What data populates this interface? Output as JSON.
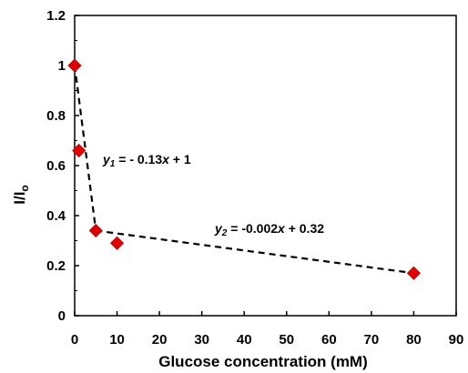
{
  "chart_data": {
    "type": "scatter",
    "xlabel": "Glucose concentration (mM)",
    "ylabel": "I/I",
    "ylabel_subscript": "o",
    "xlim": [
      0,
      90
    ],
    "ylim": [
      0,
      1.2
    ],
    "xticks": [
      0,
      10,
      20,
      30,
      40,
      50,
      60,
      70,
      80,
      90
    ],
    "yticks": [
      "0",
      "0.2",
      "0.4",
      "0.6",
      "0.8",
      "1",
      "1.2"
    ],
    "grid": false,
    "marker": "diamond",
    "marker_color": "#e30000",
    "points": [
      {
        "x": 0,
        "y": 1.0
      },
      {
        "x": 1,
        "y": 0.66
      },
      {
        "x": 5,
        "y": 0.34
      },
      {
        "x": 10,
        "y": 0.29
      },
      {
        "x": 80,
        "y": 0.17
      }
    ],
    "fit_lines": [
      {
        "x": [
          0,
          5
        ],
        "y": [
          1.0,
          0.34
        ],
        "style": "dashed"
      },
      {
        "x": [
          5,
          80
        ],
        "y": [
          0.34,
          0.17
        ],
        "style": "dashed"
      }
    ],
    "annotations": [
      {
        "var": "y",
        "sub": "1",
        "text": " = - 0.13",
        "xvar": "x",
        "rest": " + 1"
      },
      {
        "var": "y",
        "sub": "2",
        "text": " = -0.002",
        "xvar": "x",
        "rest": " + 0.32"
      }
    ]
  }
}
